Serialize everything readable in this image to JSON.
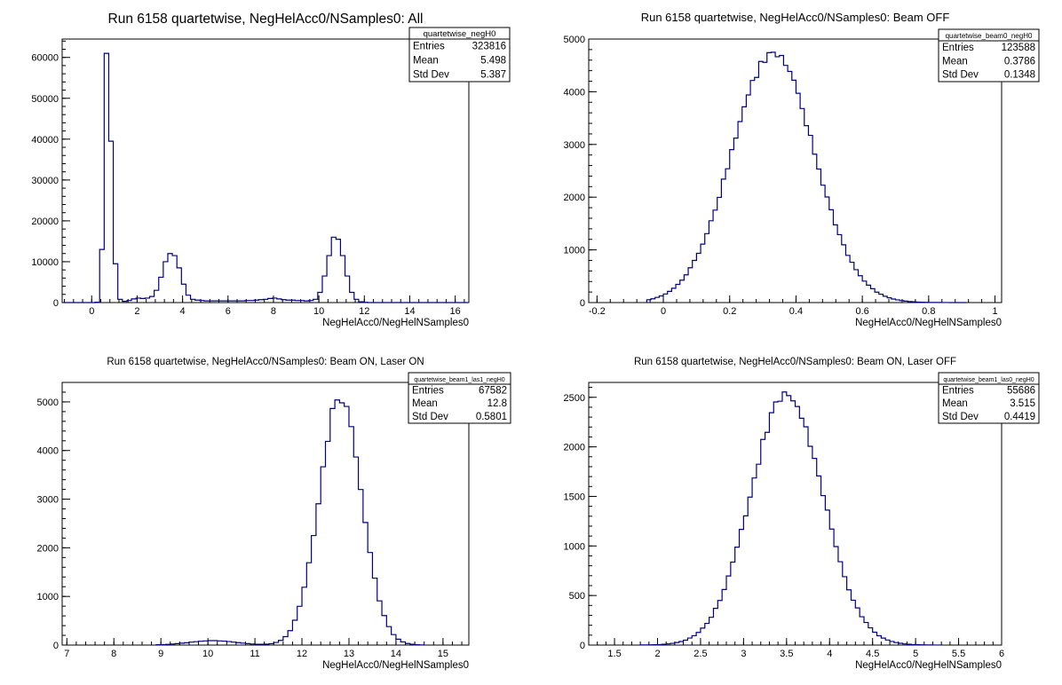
{
  "chart_data": [
    {
      "type": "histogram",
      "title": "Run 6158 quartetwise, NegHelAcc0/NSamples0: All",
      "xlabel": "NegHelAcc0/NegHelNSamples0",
      "xlim": [
        -1.3,
        16.6
      ],
      "ylim": [
        0,
        64500
      ],
      "xticks": [
        0,
        2,
        4,
        6,
        8,
        10,
        12,
        14,
        16
      ],
      "xtick_labels": [
        "0",
        "2",
        "4",
        "6",
        "8",
        "10",
        "12",
        "14",
        "16"
      ],
      "yticks": [
        0,
        10000,
        20000,
        30000,
        40000,
        50000,
        60000
      ],
      "ytick_labels": [
        "0",
        "10000",
        "20000",
        "30000",
        "40000",
        "50000",
        "60000"
      ],
      "bins": {
        "start": -1.25,
        "width": 0.2,
        "values": [
          0,
          0,
          0,
          0,
          0,
          0,
          0,
          100,
          13000,
          61000,
          39500,
          9500,
          800,
          300,
          500,
          900,
          1100,
          1000,
          1100,
          1500,
          3000,
          6200,
          10000,
          12000,
          11500,
          8500,
          4500,
          1800,
          800,
          600,
          500,
          400,
          400,
          400,
          400,
          400,
          400,
          400,
          400,
          400,
          500,
          500,
          600,
          700,
          800,
          1000,
          1100,
          900,
          700,
          600,
          600,
          500,
          500,
          400,
          500,
          800,
          2500,
          6500,
          11500,
          16000,
          15500,
          11500,
          6500,
          2500,
          800,
          200,
          50,
          0,
          0,
          0,
          0,
          0,
          0,
          0,
          0,
          0,
          0,
          0,
          0,
          0,
          0,
          0,
          0,
          0,
          0,
          0,
          0,
          0,
          0
        ]
      },
      "stats": {
        "name": "quartetwise_negH0",
        "entries": "323816",
        "mean": "5.498",
        "std_dev": "5.387"
      }
    },
    {
      "type": "histogram",
      "title": "Run 6158 quartetwise, NegHelAcc0/NSamples0: Beam OFF",
      "xlabel": "NegHelAcc0/NegHelNSamples0",
      "xlim": [
        -0.225,
        1.02
      ],
      "ylim": [
        0,
        5000
      ],
      "xticks": [
        -0.2,
        0,
        0.2,
        0.4,
        0.6,
        0.8,
        1
      ],
      "xtick_labels": [
        "-0.2",
        "0",
        "0.2",
        "0.4",
        "0.6",
        "0.8",
        "1"
      ],
      "yticks": [
        0,
        1000,
        2000,
        3000,
        4000,
        5000
      ],
      "ytick_labels": [
        "0",
        "1000",
        "2000",
        "3000",
        "4000",
        "5000"
      ],
      "gaussian": {
        "mean": 0.33,
        "sigma": 0.125,
        "amp": 4700,
        "start": -0.05,
        "end": 0.91,
        "width": 0.0125
      },
      "stats": {
        "name": "quartetwise_beam0_negH0",
        "entries": "123588",
        "mean": "0.3786",
        "std_dev": "0.1348"
      }
    },
    {
      "type": "histogram",
      "title": "Run 6158 quartetwise, NegHelAcc0/NSamples0: Beam ON, Laser ON",
      "xlabel": "NegHelAcc0/NegHelNSamples0",
      "xlim": [
        6.9,
        15.55
      ],
      "ylim": [
        0,
        5400
      ],
      "xticks": [
        7,
        8,
        9,
        10,
        11,
        12,
        13,
        14,
        15
      ],
      "xtick_labels": [
        "7",
        "8",
        "9",
        "10",
        "11",
        "12",
        "13",
        "14",
        "15"
      ],
      "yticks": [
        0,
        1000,
        2000,
        3000,
        4000,
        5000
      ],
      "ytick_labels": [
        "0",
        "1000",
        "2000",
        "3000",
        "4000",
        "5000"
      ],
      "gaussian": {
        "mean": 12.82,
        "sigma": 0.45,
        "amp": 5100,
        "start": 8.9,
        "end": 14.6,
        "width": 0.1,
        "bump": {
          "mean": 10.1,
          "sigma": 0.5,
          "amp": 90
        }
      },
      "stats": {
        "name": "quartetwise_beam1_las1_negH0",
        "entries": "67582",
        "mean": "12.8",
        "std_dev": "0.5801"
      }
    },
    {
      "type": "histogram",
      "title": "Run 6158 quartetwise, NegHelAcc0/NSamples0: Beam ON, Laser OFF",
      "xlabel": "NegHelAcc0/NegHelNSamples0",
      "xlim": [
        1.2,
        6.0
      ],
      "ylim": [
        0,
        2650
      ],
      "xticks": [
        1.5,
        2,
        2.5,
        3,
        3.5,
        4,
        4.5,
        5,
        5.5,
        6
      ],
      "xtick_labels": [
        "1.5",
        "2",
        "2.5",
        "3",
        "3.5",
        "4",
        "4.5",
        "5",
        "5.5",
        "6"
      ],
      "yticks": [
        0,
        500,
        1000,
        1500,
        2000,
        2500
      ],
      "ytick_labels": [
        "0",
        "500",
        "1000",
        "1500",
        "2000",
        "2500"
      ],
      "gaussian": {
        "mean": 3.5,
        "sigma": 0.42,
        "amp": 2520,
        "start": 1.8,
        "end": 5.3,
        "width": 0.05
      },
      "stats": {
        "name": "quartetwise_beam1_las0_negH0",
        "entries": "55686",
        "mean": "3.515",
        "std_dev": "0.4419"
      }
    }
  ],
  "stat_labels": {
    "entries": "Entries",
    "mean": "Mean",
    "std_dev": "Std Dev"
  }
}
